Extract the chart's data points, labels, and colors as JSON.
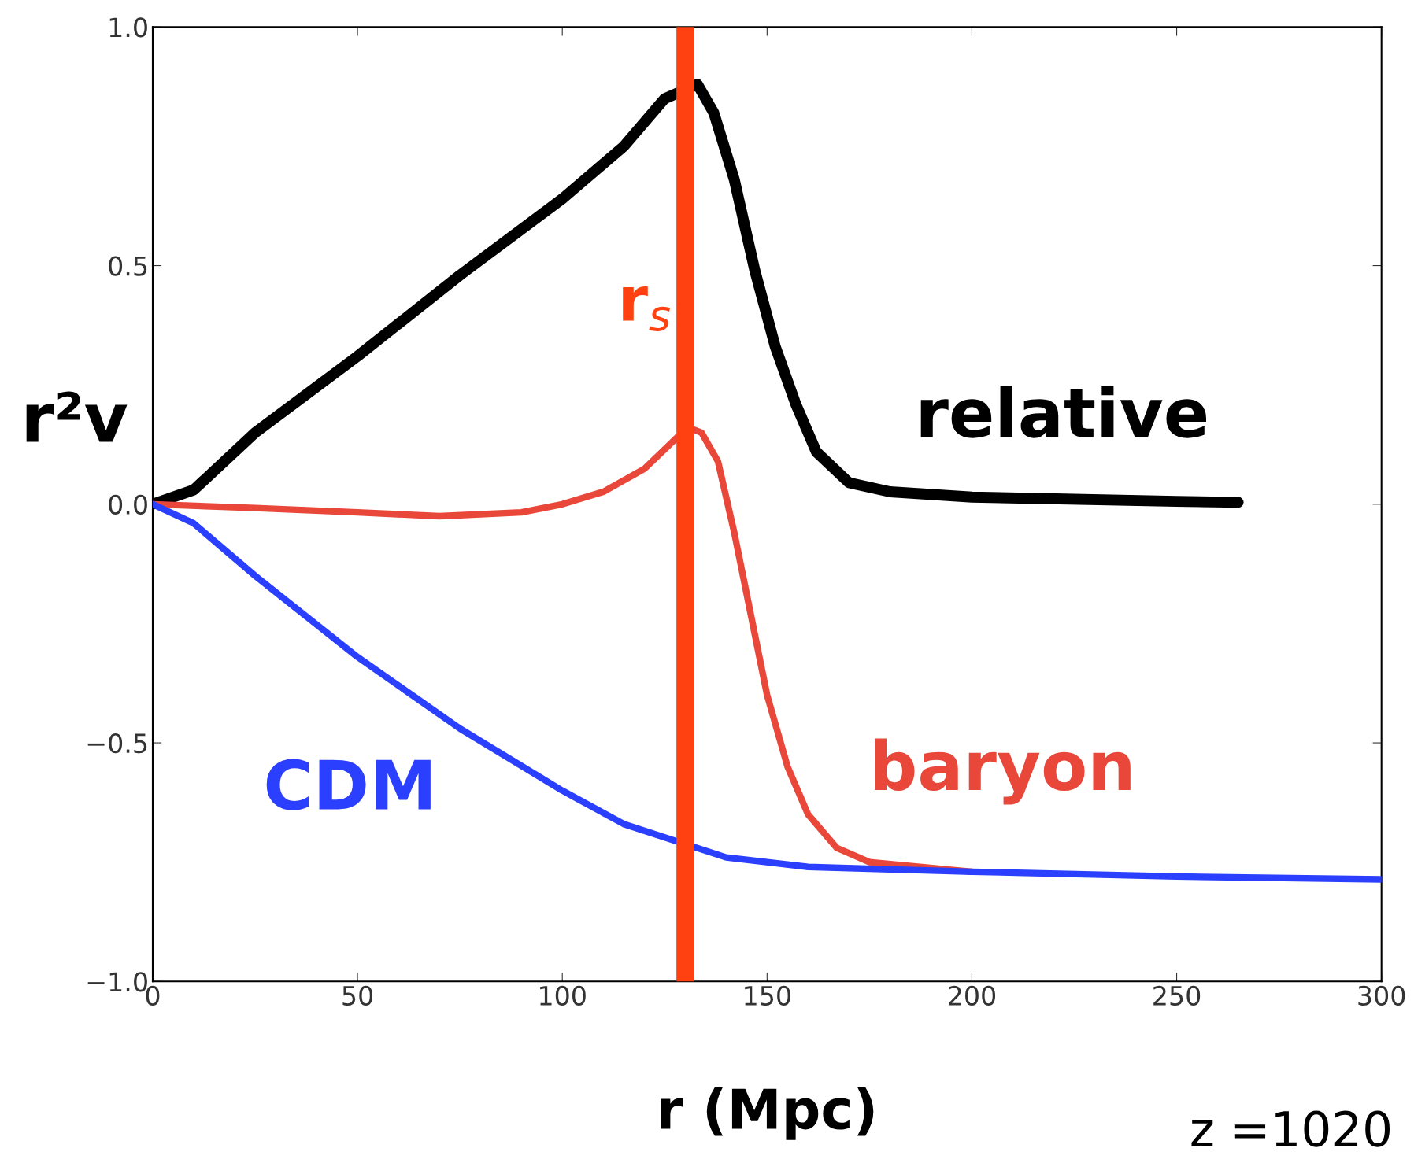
{
  "chart_data": {
    "type": "line",
    "xlabel": "r (Mpc)",
    "ylabel": "r²v",
    "xlim": [
      0,
      300
    ],
    "ylim": [
      -1,
      1
    ],
    "xticks": [
      0,
      50,
      100,
      150,
      200,
      250,
      300
    ],
    "yticks": [
      {
        "value": -1,
        "label": "−1.0"
      },
      {
        "value": -0.5,
        "label": "−0.5"
      },
      {
        "value": 0,
        "label": "0.0"
      },
      {
        "value": 0.5,
        "label": "0.5"
      },
      {
        "value": 1,
        "label": "1.0"
      }
    ],
    "grid": false,
    "legend": false,
    "marker": "none",
    "line_style": "solid",
    "series": [
      {
        "name": "relative",
        "color": "#000000",
        "x": [
          0,
          10,
          25,
          50,
          75,
          100,
          115,
          125,
          133,
          137,
          142,
          147,
          152,
          157,
          162,
          170,
          180,
          200,
          250,
          265
        ],
        "values": [
          0,
          0.03,
          0.15,
          0.31,
          0.48,
          0.64,
          0.75,
          0.85,
          0.88,
          0.82,
          0.68,
          0.49,
          0.33,
          0.21,
          0.11,
          0.045,
          0.026,
          0.015,
          0.006,
          0.004
        ]
      },
      {
        "name": "baryon",
        "color": "#e8473a",
        "x": [
          0,
          25,
          50,
          70,
          90,
          100,
          110,
          120,
          128,
          131,
          134,
          138,
          142,
          146,
          150,
          155,
          160,
          167,
          175,
          200
        ],
        "values": [
          0,
          -0.008,
          -0.017,
          -0.025,
          -0.017,
          0,
          0.026,
          0.074,
          0.14,
          0.16,
          0.15,
          0.09,
          -0.06,
          -0.23,
          -0.4,
          -0.55,
          -0.65,
          -0.72,
          -0.75,
          -0.77
        ]
      },
      {
        "name": "CDM",
        "color": "#2b3fff",
        "x": [
          0,
          10,
          25,
          50,
          75,
          100,
          115,
          140,
          160,
          200,
          250,
          300
        ],
        "values": [
          0,
          -0.04,
          -0.15,
          -0.32,
          -0.47,
          -0.6,
          -0.67,
          -0.74,
          -0.76,
          -0.77,
          -0.78,
          -0.786
        ]
      }
    ],
    "ref_lines": [
      {
        "axis": "x",
        "value": 130,
        "label": "r$_{s}$",
        "color": "#ff4010"
      }
    ],
    "annotations": [
      "z =1020"
    ]
  }
}
